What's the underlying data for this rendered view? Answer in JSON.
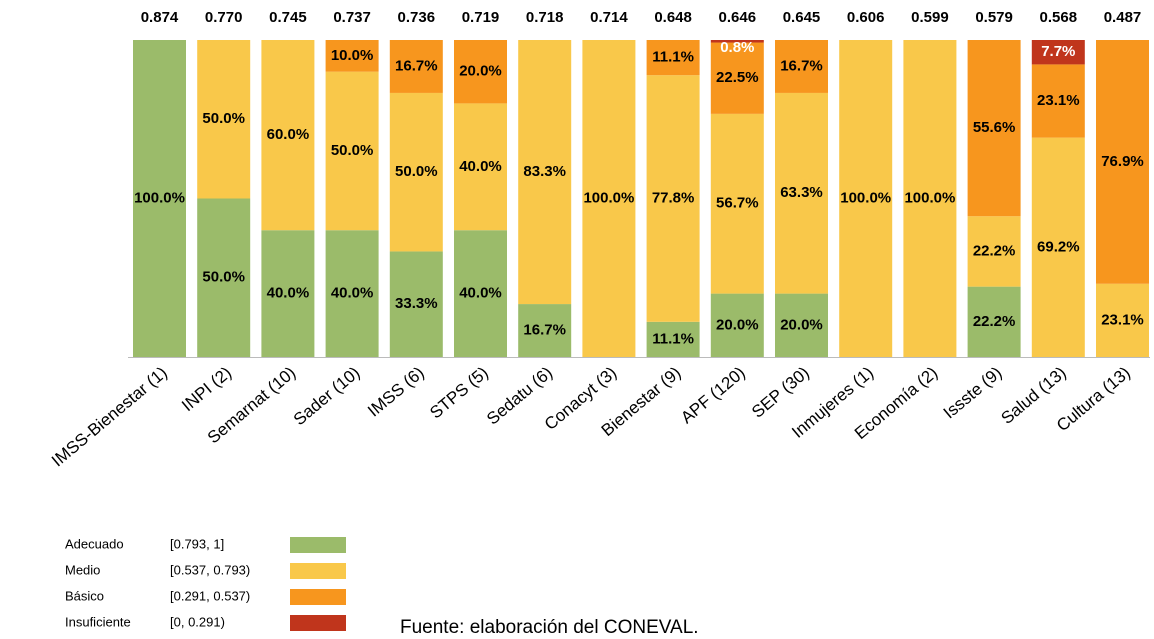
{
  "chart_data": {
    "type": "stacked_bar",
    "categories": [
      "IMSS-Bienestar (1)",
      "INPI (2)",
      "Semarnat (10)",
      "Sader (10)",
      "IMSS (6)",
      "STPS (5)",
      "Sedatu (6)",
      "Conacyt (3)",
      "Bienestar (9)",
      "APF (120)",
      "SEP (30)",
      "Inmujeres (1)",
      "Economía (2)",
      "Issste (9)",
      "Salud (13)",
      "Cultura (13)"
    ],
    "scores": [
      0.874,
      0.77,
      0.745,
      0.737,
      0.736,
      0.719,
      0.718,
      0.714,
      0.648,
      0.646,
      0.645,
      0.606,
      0.599,
      0.579,
      0.568,
      0.487
    ],
    "score_labels": [
      "0.874",
      "0.770",
      "0.745",
      "0.737",
      "0.736",
      "0.719",
      "0.718",
      "0.714",
      "0.648",
      "0.646",
      "0.645",
      "0.606",
      "0.599",
      "0.579",
      "0.568",
      "0.487"
    ],
    "ylim": [
      0,
      100
    ],
    "series": [
      {
        "name": "Adecuado",
        "range": "[0.793, 1]",
        "color": "#9bbb6a",
        "values": [
          100,
          50,
          40,
          40,
          33.3,
          40,
          16.7,
          null,
          11.1,
          20,
          20,
          null,
          null,
          22.2,
          null,
          null
        ],
        "value_labels": [
          "100.0%",
          "50.0%",
          "40.0%",
          "40.0%",
          "33.3%",
          "40.0%",
          "16.7%",
          null,
          "11.1%",
          "20.0%",
          "20.0%",
          null,
          null,
          "22.2%",
          null,
          null
        ]
      },
      {
        "name": "Medio",
        "range": "[0.537, 0.793)",
        "color": "#f9c84a",
        "values": [
          null,
          50,
          60,
          50,
          50,
          40,
          83.3,
          100,
          77.8,
          56.7,
          63.3,
          100,
          100,
          22.2,
          69.2,
          23.1
        ],
        "value_labels": [
          null,
          "50.0%",
          "60.0%",
          "50.0%",
          "50.0%",
          "40.0%",
          "83.3%",
          "100.0%",
          "77.8%",
          "56.7%",
          "63.3%",
          "100.0%",
          "100.0%",
          "22.2%",
          "69.2%",
          "23.1%"
        ]
      },
      {
        "name": "Básico",
        "range": "[0.291, 0.537)",
        "color": "#f7961e",
        "values": [
          null,
          null,
          null,
          10,
          16.7,
          20,
          null,
          null,
          11.1,
          22.5,
          16.7,
          null,
          null,
          55.6,
          23.1,
          76.9
        ],
        "value_labels": [
          null,
          null,
          null,
          "10.0%",
          "16.7%",
          "20.0%",
          null,
          null,
          "11.1%",
          "22.5%",
          "16.7%",
          null,
          null,
          "55.6%",
          "23.1%",
          "76.9%"
        ]
      },
      {
        "name": "Insuficiente",
        "range": "[0, 0.291)",
        "color": "#c0351c",
        "values": [
          null,
          null,
          null,
          null,
          null,
          null,
          null,
          null,
          null,
          0.8,
          null,
          null,
          null,
          null,
          7.7,
          null
        ],
        "value_labels": [
          null,
          null,
          null,
          null,
          null,
          null,
          null,
          null,
          null,
          "0.8%",
          null,
          null,
          null,
          null,
          "7.7%",
          null
        ]
      }
    ],
    "source": "Fuente: elaboración del CONEVAL."
  }
}
